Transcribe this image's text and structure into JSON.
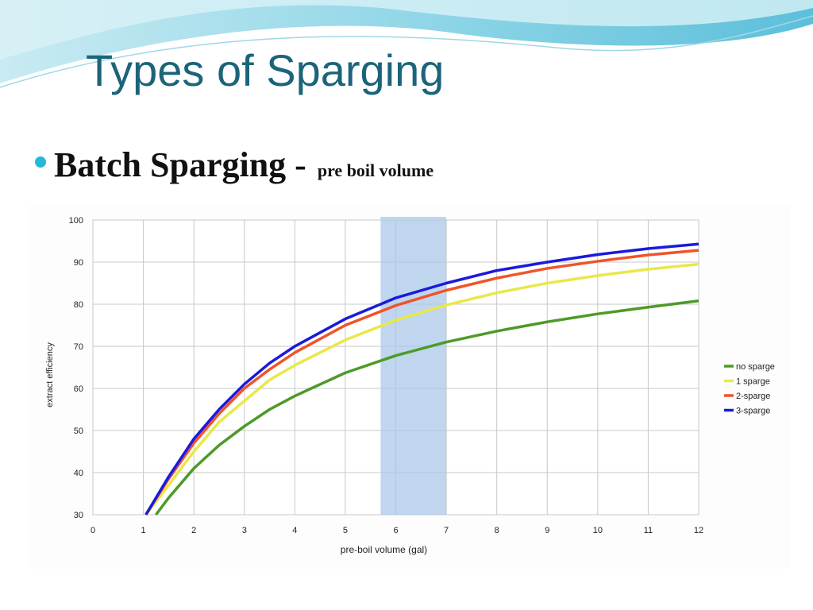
{
  "slide": {
    "title": "Types of Sparging",
    "bullet": "Batch Sparging -",
    "bullet_note": "pre boil volume"
  },
  "chart_data": {
    "type": "line",
    "xlabel": "pre-boil volume (gal)",
    "ylabel": "extract efficiency",
    "xlim": [
      0,
      12
    ],
    "xticks": [
      0,
      1,
      2,
      3,
      4,
      5,
      6,
      7,
      8,
      9,
      10,
      11,
      12
    ],
    "ylim": [
      30,
      100
    ],
    "yticks": [
      30,
      40,
      50,
      60,
      70,
      80,
      90,
      100
    ],
    "grid": true,
    "legend": "right",
    "highlight": [
      5.7,
      7
    ],
    "highlight_color": "#a9c8e8",
    "series": [
      {
        "name": "no sparge",
        "color": "#4e9a28",
        "x": [
          1.25,
          1.5,
          2,
          2.5,
          3,
          3.5,
          4,
          5,
          6,
          7,
          8,
          9,
          10,
          11,
          12
        ],
        "values": [
          30,
          34,
          41,
          46.5,
          51,
          55,
          58.2,
          63.7,
          67.8,
          71,
          73.6,
          75.8,
          77.7,
          79.3,
          80.8
        ]
      },
      {
        "name": "1 sparge",
        "color": "#e8e84a",
        "x": [
          1.05,
          1.5,
          2,
          2.5,
          3,
          3.5,
          4,
          5,
          6,
          7,
          8,
          9,
          10,
          11,
          12
        ],
        "values": [
          30,
          37,
          45,
          52,
          57,
          62,
          65.5,
          71.5,
          76.2,
          79.8,
          82.7,
          85,
          86.8,
          88.3,
          89.5
        ]
      },
      {
        "name": "2-sparge",
        "color": "#f0532a",
        "x": [
          1.05,
          1.5,
          2,
          2.5,
          3,
          3.5,
          4,
          5,
          6,
          7,
          8,
          9,
          10,
          11,
          12
        ],
        "values": [
          30,
          38.5,
          47,
          54,
          60,
          64.5,
          68.5,
          75,
          79.7,
          83.3,
          86.2,
          88.5,
          90.2,
          91.7,
          92.8
        ]
      },
      {
        "name": "3-sparge",
        "color": "#1a1adc",
        "x": [
          1.05,
          1.5,
          2,
          2.5,
          3,
          3.5,
          4,
          5,
          6,
          7,
          8,
          9,
          10,
          11,
          12
        ],
        "values": [
          30,
          39,
          48,
          55,
          61,
          66,
          70,
          76.5,
          81.5,
          85,
          88,
          90,
          91.8,
          93.2,
          94.3
        ]
      }
    ]
  }
}
